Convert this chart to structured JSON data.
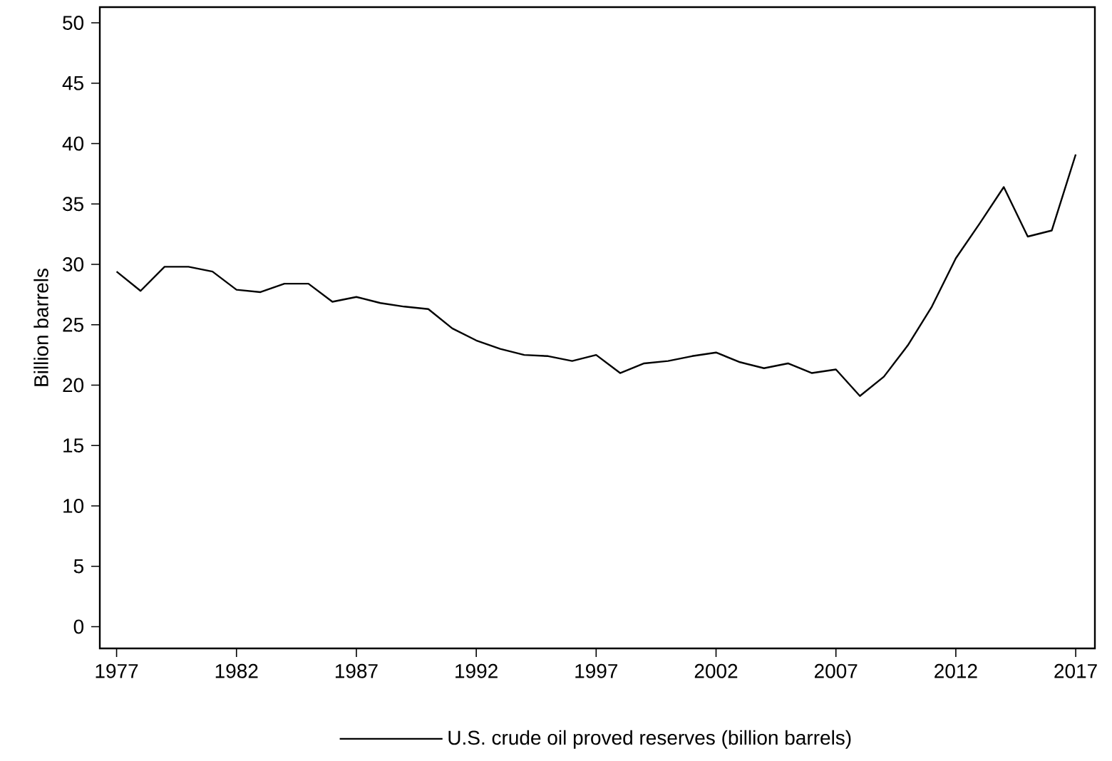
{
  "chart_data": {
    "type": "line",
    "ylabel": "Billion barrels",
    "x": [
      1977,
      1978,
      1979,
      1980,
      1981,
      1982,
      1983,
      1984,
      1985,
      1986,
      1987,
      1988,
      1989,
      1990,
      1991,
      1992,
      1993,
      1994,
      1995,
      1996,
      1997,
      1998,
      1999,
      2000,
      2001,
      2002,
      2003,
      2004,
      2005,
      2006,
      2007,
      2008,
      2009,
      2010,
      2011,
      2012,
      2013,
      2014,
      2015,
      2016,
      2017
    ],
    "series": [
      {
        "name": "U.S. crude oil proved reserves (billion barrels)",
        "color": "#000000",
        "values": [
          29.4,
          27.8,
          29.8,
          29.8,
          29.4,
          27.9,
          27.7,
          28.4,
          28.4,
          26.9,
          27.3,
          26.8,
          26.5,
          26.3,
          24.7,
          23.7,
          23.0,
          22.5,
          22.4,
          22.0,
          22.5,
          21.0,
          21.8,
          22.0,
          22.4,
          22.7,
          21.9,
          21.4,
          21.8,
          21.0,
          21.3,
          19.1,
          20.7,
          23.3,
          26.5,
          30.5,
          33.4,
          36.4,
          32.3,
          32.8,
          39.1
        ]
      }
    ],
    "xlim": [
      1976.3,
      2017.8
    ],
    "ylim": [
      -1.8,
      51.3
    ],
    "xticks": [
      1977,
      1982,
      1987,
      1992,
      1997,
      2002,
      2007,
      2012,
      2017
    ],
    "yticks": [
      0,
      5,
      10,
      15,
      20,
      25,
      30,
      35,
      40,
      45,
      50
    ],
    "legend": "bottom",
    "grid": false,
    "marker": "none",
    "line_style": "solid"
  }
}
